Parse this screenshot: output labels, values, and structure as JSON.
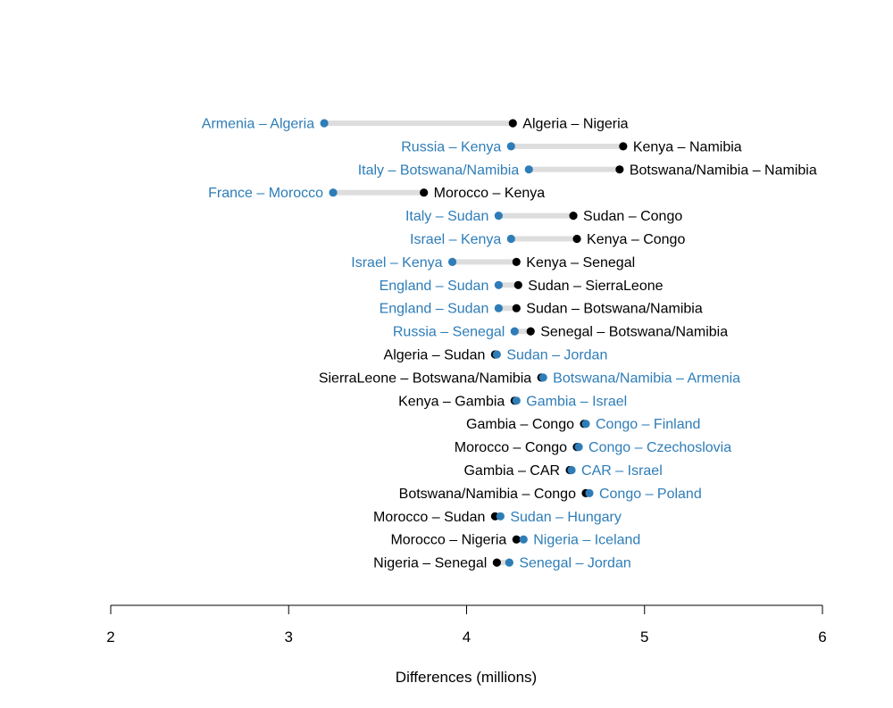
{
  "chart_data": {
    "type": "dumbbell",
    "xlabel": "Differences (millions)",
    "xlim": [
      2,
      6
    ],
    "xticks": [
      2,
      3,
      4,
      5,
      6
    ],
    "colors": {
      "blue": "#2e7db8",
      "black": "#000000",
      "connector": "#dddddd"
    },
    "rows": [
      {
        "blue": {
          "label": "Armenia – Algeria",
          "value": 3.2
        },
        "black": {
          "label": "Algeria – Nigeria",
          "value": 4.26
        }
      },
      {
        "blue": {
          "label": "Russia – Kenya",
          "value": 4.25
        },
        "black": {
          "label": "Kenya – Namibia",
          "value": 4.88
        }
      },
      {
        "blue": {
          "label": "Italy – Botswana/Namibia",
          "value": 4.35
        },
        "black": {
          "label": "Botswana/Namibia – Namibia",
          "value": 4.86
        }
      },
      {
        "blue": {
          "label": "France – Morocco",
          "value": 3.25
        },
        "black": {
          "label": "Morocco – Kenya",
          "value": 3.76
        }
      },
      {
        "blue": {
          "label": "Italy – Sudan",
          "value": 4.18
        },
        "black": {
          "label": "Sudan – Congo",
          "value": 4.6
        }
      },
      {
        "blue": {
          "label": "Israel – Kenya",
          "value": 4.25
        },
        "black": {
          "label": "Kenya – Congo",
          "value": 4.62
        }
      },
      {
        "blue": {
          "label": "Israel – Kenya",
          "value": 3.92
        },
        "black": {
          "label": "Kenya – Senegal",
          "value": 4.28
        }
      },
      {
        "blue": {
          "label": "England – Sudan",
          "value": 4.18
        },
        "black": {
          "label": "Sudan – SierraLeone",
          "value": 4.29
        }
      },
      {
        "blue": {
          "label": "England – Sudan",
          "value": 4.18
        },
        "black": {
          "label": "Sudan – Botswana/Namibia",
          "value": 4.28
        }
      },
      {
        "blue": {
          "label": "Russia – Senegal",
          "value": 4.27
        },
        "black": {
          "label": "Senegal – Botswana/Namibia",
          "value": 4.36
        }
      },
      {
        "blue": {
          "label": "Sudan – Jordan",
          "value": 4.17
        },
        "black": {
          "label": "Algeria – Sudan",
          "value": 4.16
        }
      },
      {
        "blue": {
          "label": "Botswana/Namibia – Armenia",
          "value": 4.43
        },
        "black": {
          "label": "SierraLeone – Botswana/Namibia",
          "value": 4.42
        }
      },
      {
        "blue": {
          "label": "Gambia – Israel",
          "value": 4.28
        },
        "black": {
          "label": "Kenya – Gambia",
          "value": 4.27
        }
      },
      {
        "blue": {
          "label": "Congo – Finland",
          "value": 4.67
        },
        "black": {
          "label": "Gambia – Congo",
          "value": 4.66
        }
      },
      {
        "blue": {
          "label": "Congo – Czechoslovia",
          "value": 4.63
        },
        "black": {
          "label": "Morocco – Congo",
          "value": 4.62
        }
      },
      {
        "blue": {
          "label": "CAR – Israel",
          "value": 4.59
        },
        "black": {
          "label": "Gambia – CAR",
          "value": 4.58
        }
      },
      {
        "blue": {
          "label": "Congo – Poland",
          "value": 4.69
        },
        "black": {
          "label": "Botswana/Namibia – Congo",
          "value": 4.67
        }
      },
      {
        "blue": {
          "label": "Sudan – Hungary",
          "value": 4.19
        },
        "black": {
          "label": "Morocco – Sudan",
          "value": 4.16
        }
      },
      {
        "blue": {
          "label": "Nigeria – Iceland",
          "value": 4.32
        },
        "black": {
          "label": "Morocco – Nigeria",
          "value": 4.28
        }
      },
      {
        "blue": {
          "label": "Senegal – Jordan",
          "value": 4.24
        },
        "black": {
          "label": "Nigeria – Senegal",
          "value": 4.17
        }
      }
    ]
  }
}
